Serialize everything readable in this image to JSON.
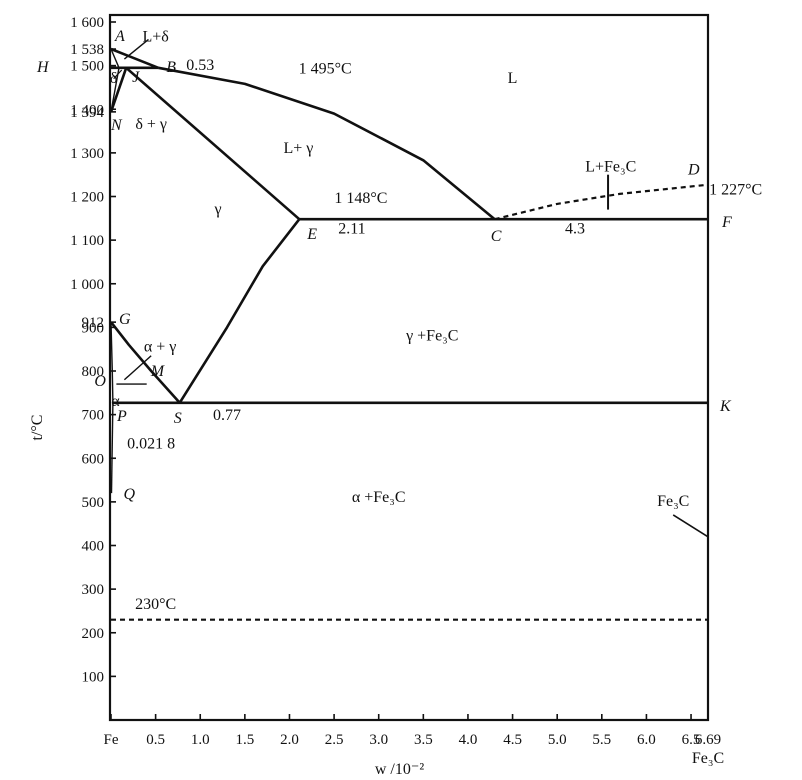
{
  "chart_data": {
    "type": "line",
    "title": "",
    "xlabel": "w /10⁻²",
    "ylabel": "t/°C",
    "xlim": [
      0,
      6.69
    ],
    "ylim": [
      0,
      1600
    ],
    "x_tick_labels": [
      {
        "x": 0,
        "label": "Fe"
      },
      {
        "x": 0.5,
        "label": "0.5"
      },
      {
        "x": 1.0,
        "label": "1.0"
      },
      {
        "x": 1.5,
        "label": "1.5"
      },
      {
        "x": 2.0,
        "label": "2.0"
      },
      {
        "x": 2.5,
        "label": "2.5"
      },
      {
        "x": 3.0,
        "label": "3.0"
      },
      {
        "x": 3.5,
        "label": "3.5"
      },
      {
        "x": 4.0,
        "label": "4.0"
      },
      {
        "x": 4.5,
        "label": "4.5"
      },
      {
        "x": 5.0,
        "label": "5.0"
      },
      {
        "x": 5.5,
        "label": "5.5"
      },
      {
        "x": 6.0,
        "label": "6.0"
      },
      {
        "x": 6.5,
        "label": "6.5"
      },
      {
        "x": 6.69,
        "label": "6.69"
      }
    ],
    "x_end_label": "Fe₃C",
    "y_tick_labels": [
      {
        "y": 100,
        "label": "100"
      },
      {
        "y": 200,
        "label": "200"
      },
      {
        "y": 300,
        "label": "300"
      },
      {
        "y": 400,
        "label": "400"
      },
      {
        "y": 500,
        "label": "500"
      },
      {
        "y": 600,
        "label": "600"
      },
      {
        "y": 700,
        "label": "700"
      },
      {
        "y": 800,
        "label": "800"
      },
      {
        "y": 900,
        "label": "900"
      },
      {
        "y": 912,
        "label": "912"
      },
      {
        "y": 1000,
        "label": "1 000"
      },
      {
        "y": 1100,
        "label": "1 100"
      },
      {
        "y": 1200,
        "label": "1 200"
      },
      {
        "y": 1300,
        "label": "1 300"
      },
      {
        "y": 1394,
        "label": "1 394"
      },
      {
        "y": 1400,
        "label": "1 400"
      },
      {
        "y": 1500,
        "label": "1 500"
      },
      {
        "y": 1538,
        "label": "1 538"
      },
      {
        "y": 1600,
        "label": "1 600"
      }
    ],
    "points": [
      {
        "name": "A",
        "x": 0,
        "y": 1538
      },
      {
        "name": "H",
        "x": 0.09,
        "y": 1495
      },
      {
        "name": "J",
        "x": 0.17,
        "y": 1495
      },
      {
        "name": "B",
        "x": 0.53,
        "y": 1495
      },
      {
        "name": "N",
        "x": 0,
        "y": 1394
      },
      {
        "name": "E",
        "x": 2.11,
        "y": 1148
      },
      {
        "name": "C",
        "x": 4.3,
        "y": 1148
      },
      {
        "name": "F",
        "x": 6.69,
        "y": 1148
      },
      {
        "name": "D",
        "x": 6.69,
        "y": 1227
      },
      {
        "name": "G",
        "x": 0,
        "y": 912
      },
      {
        "name": "M",
        "x": 0.4,
        "y": 770
      },
      {
        "name": "O",
        "x": 0.06,
        "y": 770
      },
      {
        "name": "P",
        "x": 0.0218,
        "y": 727
      },
      {
        "name": "S",
        "x": 0.77,
        "y": 727
      },
      {
        "name": "K",
        "x": 6.69,
        "y": 727
      },
      {
        "name": "Q",
        "x": 0.006,
        "y": 520
      }
    ],
    "lines": [
      {
        "name": "AB",
        "style": "solid",
        "x": [
          0,
          0.53
        ],
        "y": [
          1538,
          1495
        ]
      },
      {
        "name": "AH",
        "style": "solid",
        "x": [
          0,
          0.09
        ],
        "y": [
          1538,
          1495
        ]
      },
      {
        "name": "HB",
        "style": "solid",
        "x": [
          0,
          0.53
        ],
        "y": [
          1495,
          1495
        ]
      },
      {
        "name": "BC",
        "style": "solid",
        "x": [
          0.53,
          1.5,
          2.5,
          3.5,
          4.3
        ],
        "y": [
          1495,
          1458,
          1390,
          1283,
          1148
        ]
      },
      {
        "name": "JE",
        "style": "solid",
        "x": [
          0.17,
          2.11
        ],
        "y": [
          1495,
          1148
        ]
      },
      {
        "name": "HN",
        "style": "solid",
        "x": [
          0.09,
          0
        ],
        "y": [
          1495,
          1394
        ]
      },
      {
        "name": "JN",
        "style": "solid",
        "x": [
          0.17,
          0
        ],
        "y": [
          1495,
          1394
        ]
      },
      {
        "name": "ECF",
        "style": "solid",
        "x": [
          2.11,
          6.69
        ],
        "y": [
          1148,
          1148
        ]
      },
      {
        "name": "CD",
        "style": "dashed",
        "x": [
          4.3,
          5.0,
          5.7,
          6.69
        ],
        "y": [
          1148,
          1183,
          1206,
          1227
        ]
      },
      {
        "name": "GS",
        "style": "solid",
        "x": [
          0,
          0.2,
          0.45,
          0.77
        ],
        "y": [
          912,
          860,
          800,
          727
        ]
      },
      {
        "name": "ES",
        "style": "solid",
        "x": [
          2.11,
          1.7,
          1.3,
          0.77
        ],
        "y": [
          1148,
          1040,
          900,
          727
        ]
      },
      {
        "name": "GP",
        "style": "solid",
        "x": [
          0,
          0.015,
          0.0218
        ],
        "y": [
          912,
          800,
          727
        ]
      },
      {
        "name": "PSK",
        "style": "solid",
        "x": [
          0.0218,
          6.69
        ],
        "y": [
          727,
          727
        ]
      },
      {
        "name": "PQ",
        "style": "solid",
        "x": [
          0.0218,
          0.006
        ],
        "y": [
          727,
          520
        ]
      },
      {
        "name": "MO",
        "style": "solid",
        "x": [
          0.06,
          0.4
        ],
        "y": [
          770,
          770
        ]
      },
      {
        "name": "230",
        "style": "dashed",
        "x": [
          0,
          6.69
        ],
        "y": [
          230,
          230
        ]
      }
    ],
    "annotations": [
      {
        "text": "L+δ",
        "x": 0.5,
        "y": 1555
      },
      {
        "text": "0.53",
        "x": 1.0,
        "y": 1490
      },
      {
        "text": "1 495°C",
        "x": 2.4,
        "y": 1482
      },
      {
        "text": "L",
        "x": 4.5,
        "y": 1460
      },
      {
        "text": "δ",
        "x": 0.03,
        "y": 1460
      },
      {
        "text": "δ + γ",
        "x": 0.45,
        "y": 1355
      },
      {
        "text": "L+ γ",
        "x": 2.1,
        "y": 1300
      },
      {
        "text": "L+Fe₃C",
        "x": 5.6,
        "y": 1257
      },
      {
        "text": "1 227°C",
        "x": 7.0,
        "y": 1205
      },
      {
        "text": "1 148°C",
        "x": 2.8,
        "y": 1185
      },
      {
        "text": "γ",
        "x": 1.2,
        "y": 1160
      },
      {
        "text": "2.11",
        "x": 2.7,
        "y": 1115
      },
      {
        "text": "4.3",
        "x": 5.2,
        "y": 1115
      },
      {
        "text": "γ +Fe₃C",
        "x": 3.6,
        "y": 870
      },
      {
        "text": "α + γ",
        "x": 0.55,
        "y": 845
      },
      {
        "text": "α",
        "x": 0.05,
        "y": 720
      },
      {
        "text": "0.77",
        "x": 1.3,
        "y": 688
      },
      {
        "text": "0.021 8",
        "x": 0.45,
        "y": 622
      },
      {
        "text": "α +Fe₃C",
        "x": 3.0,
        "y": 500
      },
      {
        "text": "Fe₃C",
        "x": 6.3,
        "y": 490
      },
      {
        "text": "230°C",
        "x": 0.5,
        "y": 255
      }
    ],
    "grid": false,
    "legend": "none"
  }
}
